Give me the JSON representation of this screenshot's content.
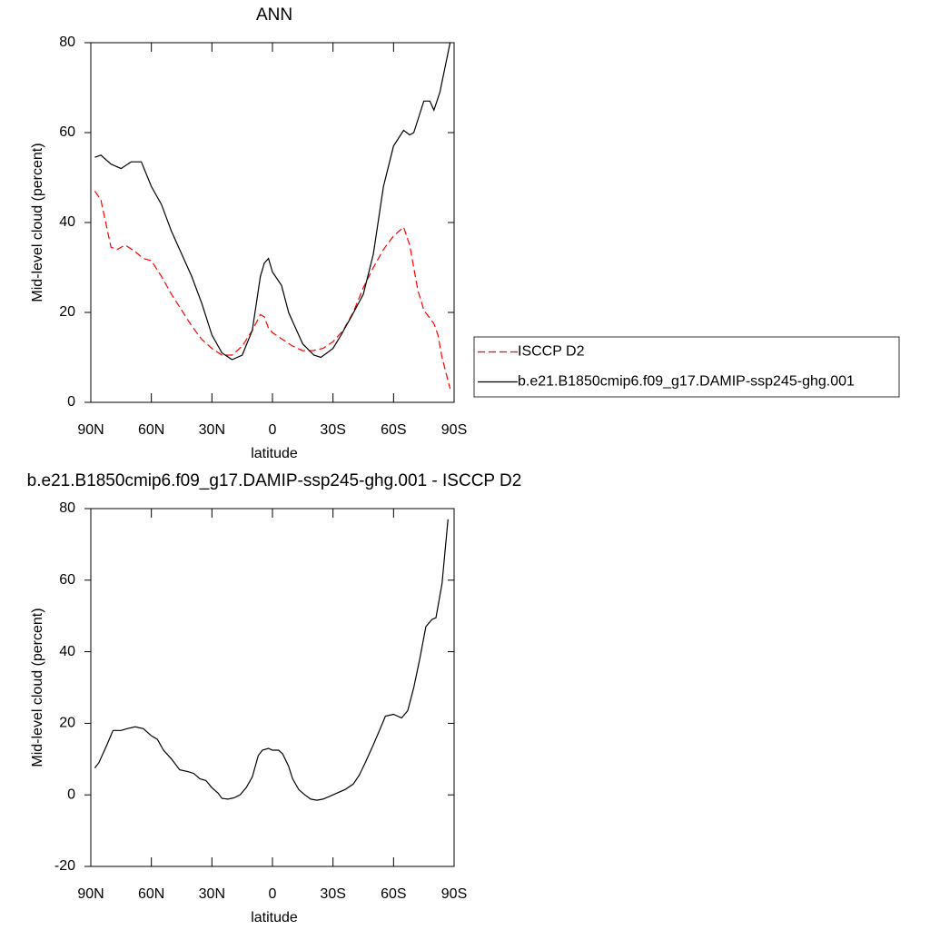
{
  "chart_data": [
    {
      "type": "line",
      "title": "ANN",
      "xlabel": "latitude",
      "ylabel": "Mid-level cloud (percent)",
      "xlim": [
        90,
        -90
      ],
      "ylim": [
        0,
        80
      ],
      "xticks": [
        {
          "value": 90,
          "label": "90N"
        },
        {
          "value": 60,
          "label": "60N"
        },
        {
          "value": 30,
          "label": "30N"
        },
        0,
        {
          "value": -30,
          "label": "30S"
        },
        {
          "value": -60,
          "label": "60S"
        },
        {
          "value": -90,
          "label": "90S"
        }
      ],
      "yticks": [
        0,
        20,
        40,
        60,
        80
      ],
      "legend": "right",
      "series": [
        {
          "name": "ISCCP D2",
          "color": "#ff0000",
          "dash": true,
          "x": [
            88,
            85,
            80,
            77,
            73,
            68,
            64,
            60,
            55,
            50,
            45,
            40,
            35,
            30,
            25,
            20,
            15,
            10,
            6,
            4,
            2,
            0,
            -5,
            -10,
            -15,
            -20,
            -25,
            -30,
            -35,
            -40,
            -45,
            -50,
            -55,
            -60,
            -65,
            -68,
            -72,
            -75,
            -80,
            -82,
            -84,
            -88
          ],
          "values": [
            47,
            45,
            34.5,
            34,
            35,
            33.5,
            32,
            31.5,
            28,
            24,
            20.5,
            17,
            14,
            12,
            10.5,
            10.5,
            12.5,
            16,
            19.5,
            19,
            16.5,
            15.5,
            14,
            12.5,
            11.5,
            11.5,
            12,
            13.5,
            16,
            20,
            25.5,
            30,
            34,
            37,
            39,
            35,
            25,
            20.5,
            17.5,
            15,
            10,
            3
          ]
        },
        {
          "name": "b.e21.B1850cmip6.f09_g17.DAMIP-ssp245-ghg.001",
          "color": "#000000",
          "dash": false,
          "x": [
            88,
            85,
            80,
            75,
            70,
            65,
            60,
            55,
            50,
            45,
            40,
            35,
            30,
            25,
            20,
            15,
            10,
            6,
            4,
            2,
            0,
            -4.5,
            -8,
            -11,
            -15,
            -20.5,
            -24,
            -27,
            -30,
            -34,
            -39,
            -45,
            -50,
            -55,
            -60,
            -65,
            -68,
            -70,
            -75,
            -78,
            -80,
            -83,
            -88
          ],
          "values": [
            54.5,
            55,
            53,
            52,
            53.5,
            53.5,
            48,
            44,
            38,
            33,
            28,
            22,
            15,
            11,
            9.5,
            10.5,
            16,
            28,
            31,
            32,
            29,
            26,
            20,
            17,
            13,
            10.5,
            10,
            11,
            12,
            15,
            19,
            24,
            33,
            48,
            57,
            60.5,
            59.5,
            60,
            67,
            67,
            65,
            69,
            80
          ]
        }
      ]
    },
    {
      "type": "line",
      "title": "b.e21.B1850cmip6.f09_g17.DAMIP-ssp245-ghg.001 - ISCCP D2",
      "xlabel": "latitude",
      "ylabel": "Mid-level cloud (percent)",
      "xlim": [
        90,
        -90
      ],
      "ylim": [
        -20,
        80
      ],
      "xticks": [
        {
          "value": 90,
          "label": "90N"
        },
        {
          "value": 60,
          "label": "60N"
        },
        {
          "value": 30,
          "label": "30N"
        },
        0,
        {
          "value": -30,
          "label": "30S"
        },
        {
          "value": -60,
          "label": "60S"
        },
        {
          "value": -90,
          "label": "90S"
        }
      ],
      "yticks": [
        -20,
        0,
        20,
        40,
        60,
        80
      ],
      "series": [
        {
          "color": "#000000",
          "dash": false,
          "x": [
            88,
            86,
            82,
            79,
            75,
            72,
            68,
            64,
            60,
            57,
            54,
            50,
            46,
            42,
            39,
            36,
            33,
            30,
            27,
            25,
            22,
            19,
            16,
            13,
            10,
            7,
            5,
            2,
            0,
            -3,
            -5,
            -8,
            -10,
            -13,
            -16,
            -19,
            -22,
            -25,
            -28,
            -32,
            -36,
            -40,
            -43,
            -46,
            -50,
            -53,
            -56,
            -60,
            -64,
            -67,
            -70,
            -73,
            -76,
            -79,
            -81,
            -84,
            -87
          ],
          "values": [
            7.5,
            9,
            14,
            18,
            18,
            18.5,
            19,
            18.5,
            16.5,
            15.5,
            12.5,
            10,
            7,
            6.5,
            6,
            4.5,
            4,
            2,
            0.5,
            -1,
            -1.2,
            -0.8,
            0,
            2,
            5,
            11,
            12.5,
            13,
            12.5,
            12.5,
            11.5,
            8,
            4.5,
            1.5,
            0,
            -1.2,
            -1.5,
            -1.2,
            -0.5,
            0.5,
            1.5,
            3,
            5.5,
            9,
            14,
            18,
            22,
            22.5,
            21.5,
            23.5,
            30,
            38,
            47,
            49,
            49.5,
            59,
            77
          ]
        }
      ]
    }
  ]
}
